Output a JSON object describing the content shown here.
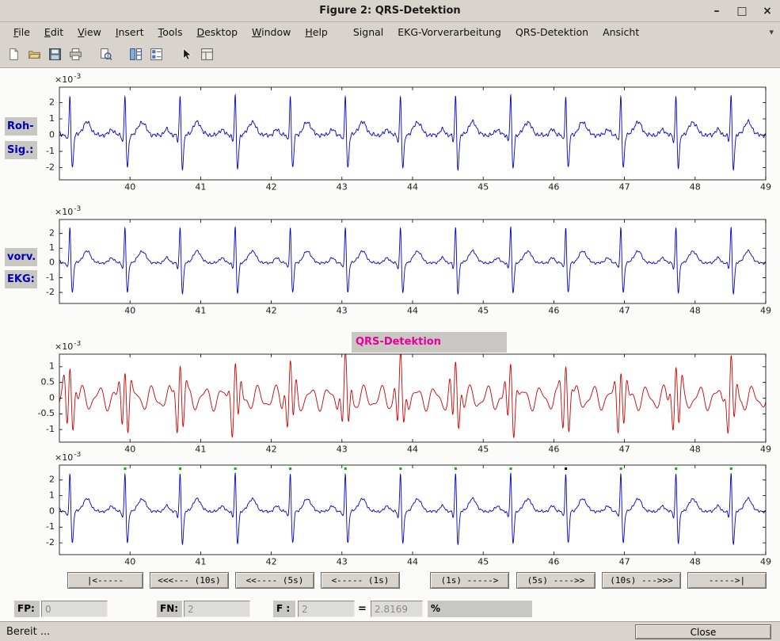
{
  "window": {
    "title": "Figure 2: QRS-Detektion",
    "controls": {
      "minimize": "–",
      "maximize": "□",
      "close": "×"
    }
  },
  "menu": {
    "items": [
      "File",
      "Edit",
      "View",
      "Insert",
      "Tools",
      "Desktop",
      "Window",
      "Help",
      "Signal",
      "EKG-Vorverarbeitung",
      "QRS-Detektion",
      "Ansicht"
    ],
    "overflow_glyph": "▾"
  },
  "toolbar": {
    "icons": [
      "new-document",
      "open-folder",
      "save",
      "print",
      "print-preview",
      "figure-palette",
      "plot-browser",
      "pointer",
      "property-editor"
    ]
  },
  "side_labels": {
    "raw": [
      "Roh-",
      "Sig.:"
    ],
    "prep": [
      "vorv.",
      "EKG:"
    ]
  },
  "qrs_title": "QRS-Detektion",
  "colors": {
    "raw_signal": "#0000c8",
    "prep_signal": "#0000c8",
    "filtered_signal": "#cc0000",
    "detection_marker": "#00b400",
    "missed_marker": "#000000",
    "qrs_title_text": "#e8009c",
    "side_label_text": "#0000b6"
  },
  "chart_data": [
    {
      "id": "raw_signal",
      "type": "line",
      "color": "#0000c8",
      "signal": "ecg_raw",
      "x_range": [
        39,
        49
      ],
      "y_range": [
        -2.75,
        2.95
      ],
      "x_ticks": [
        40,
        41,
        42,
        43,
        44,
        45,
        46,
        47,
        48,
        49
      ],
      "y_ticks": [
        2,
        1,
        0,
        -1,
        -2
      ],
      "y_exponent": {
        "base": "×10",
        "power": "-3"
      }
    },
    {
      "id": "preprocessed_ecg",
      "type": "line",
      "color": "#0000c8",
      "signal": "ecg_prep",
      "x_range": [
        39,
        49
      ],
      "y_range": [
        -2.75,
        2.95
      ],
      "x_ticks": [
        40,
        41,
        42,
        43,
        44,
        45,
        46,
        47,
        48,
        49
      ],
      "y_ticks": [
        2,
        1,
        0,
        -1,
        -2
      ],
      "y_exponent": {
        "base": "×10",
        "power": "-3"
      }
    },
    {
      "id": "qrs_filtered",
      "type": "line",
      "title": "QRS-Detektion",
      "color": "#cc0000",
      "signal": "filtered",
      "x_range": [
        39,
        49
      ],
      "y_range": [
        -1.4,
        1.4
      ],
      "x_ticks": [
        40,
        41,
        42,
        43,
        44,
        45,
        46,
        47,
        48,
        49
      ],
      "y_ticks": [
        1,
        0.5,
        0,
        -0.5,
        -1
      ],
      "y_exponent": {
        "base": "×10",
        "power": "-3"
      }
    },
    {
      "id": "detection_result",
      "type": "line",
      "color": "#0000c8",
      "signal": "ecg_prep",
      "x_range": [
        39,
        49
      ],
      "y_range": [
        -2.75,
        2.95
      ],
      "x_ticks": [
        40,
        41,
        42,
        43,
        44,
        45,
        46,
        47,
        48,
        49
      ],
      "y_ticks": [
        2,
        1,
        0,
        -1,
        -2
      ],
      "y_exponent": {
        "base": "×10",
        "power": "-3"
      },
      "detections": [
        39.93,
        40.71,
        41.49,
        42.27,
        43.05,
        43.83,
        44.61,
        45.39,
        46.95,
        47.73,
        48.51
      ],
      "missed": [
        46.17
      ]
    }
  ],
  "signal_params": {
    "rr_interval": 0.78,
    "first_beat_time": 39.15,
    "r_amp": 2.65,
    "r_width": 0.011,
    "q_amp": -0.35,
    "q_width": 0.012,
    "q_offset": -0.035,
    "s_amp": -2.05,
    "s_width": 0.016,
    "s_offset": 0.032,
    "t_amp": 0.8,
    "t_width": 0.055,
    "t_offset": 0.24,
    "p_amp": 0.35,
    "p_width": 0.035,
    "p_offset": -0.19,
    "noise_amp_raw": 0.07,
    "noise_amp_prep": 0.045,
    "filtered": {
      "base_amp": 0.3,
      "base_freq": 4.0,
      "ripple_amp": 0.12,
      "ripple_freq": 7.3,
      "burst_amp": 1.15,
      "burst_freq": 11,
      "burst_width": 0.055
    }
  },
  "nav_buttons": [
    "|<-----",
    "<<<--- (10s)",
    "<<---- (5s)",
    "<----- (1s)",
    "(1s) ----->",
    "(5s) ---->>",
    "(10s) --->>>",
    "----->|"
  ],
  "stats": {
    "fp_label": "FP:",
    "fp_value": "0",
    "fn_label": "FN:",
    "fn_value": "2",
    "f_label": "F :",
    "f_value": "2",
    "equals": "=",
    "result_value": "2.8169",
    "percent_label": "%"
  },
  "statusbar": {
    "text": "Bereit ...",
    "close_label": "Close"
  }
}
